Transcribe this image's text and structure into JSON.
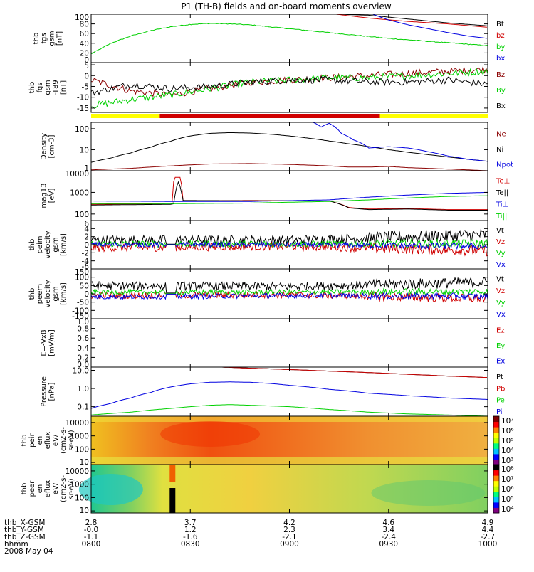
{
  "title": "P1 (TH-B) fields and on-board moments overview",
  "colors": {
    "black": "#000000",
    "red": "#d00000",
    "green": "#00d000",
    "blue": "#0000e0",
    "darkred": "#8b0000",
    "yellow": "#ffff00"
  },
  "chart_data": [
    {
      "type": "line",
      "id": "p1",
      "ylabel": [
        "thb",
        "fgs",
        "gsm",
        "[nT]"
      ],
      "ylim": [
        0,
        100
      ],
      "yticks": [
        "0",
        "20",
        "40",
        "60",
        "80",
        "100"
      ],
      "legend": [
        {
          "label": "Bt",
          "color": "black"
        },
        {
          "label": "bz",
          "color": "red"
        },
        {
          "label": "by",
          "color": "green"
        },
        {
          "label": "bx",
          "color": "blue"
        }
      ],
      "series": [
        {
          "name": "Bt",
          "color": "black",
          "x": [
            0.618,
            0.7,
            0.8,
            0.9,
            1.0
          ],
          "y": [
            100,
            98,
            90,
            82,
            76
          ]
        },
        {
          "name": "bz",
          "color": "red",
          "x": [
            0.618,
            0.7,
            0.8,
            0.9,
            1.0
          ],
          "y": [
            100,
            92,
            85,
            80,
            73
          ]
        },
        {
          "name": "by",
          "color": "green",
          "x": [
            0,
            0.05,
            0.1,
            0.15,
            0.2,
            0.25,
            0.3,
            0.35,
            0.4,
            0.45,
            0.5,
            0.55,
            0.6,
            0.65,
            0.7,
            0.75,
            0.8,
            0.85,
            0.9,
            0.95,
            1.0
          ],
          "y": [
            18,
            40,
            55,
            66,
            74,
            79,
            81,
            80,
            78,
            74,
            70,
            66,
            62,
            58,
            54,
            50,
            47,
            44,
            41,
            38,
            35
          ]
        },
        {
          "name": "bx",
          "color": "blue",
          "x": [
            0.71,
            0.75,
            0.8,
            0.85,
            0.9,
            0.95,
            1.0
          ],
          "y": [
            100,
            88,
            78,
            70,
            62,
            55,
            50
          ]
        }
      ]
    },
    {
      "type": "line",
      "id": "p2",
      "ylabel": [
        "thb",
        "fgs",
        "gsm",
        "-T89"
      ],
      "ylabel_unit": "[nT]",
      "ylim": [
        -17,
        6
      ],
      "yticks": [
        "-15",
        "-10",
        "-5",
        "0",
        "5"
      ],
      "legend": [
        {
          "label": "Bz",
          "color": "darkred"
        },
        {
          "label": "By",
          "color": "green"
        },
        {
          "label": "Bx",
          "color": "black"
        }
      ],
      "series": [
        {
          "name": "Bz",
          "color": "darkred",
          "x": [
            0,
            0.1,
            0.2,
            0.3,
            0.4,
            0.5,
            0.6,
            0.7,
            0.8,
            0.9,
            1.0
          ],
          "y": [
            -2,
            -7,
            -9,
            -6,
            -3,
            -2,
            -1,
            0,
            1,
            2,
            3
          ]
        },
        {
          "name": "By",
          "color": "green",
          "x": [
            0,
            0.1,
            0.2,
            0.3,
            0.4,
            0.5,
            0.6,
            0.7,
            0.8,
            0.9,
            1.0
          ],
          "y": [
            -14,
            -11,
            -9,
            -6,
            -3,
            -2,
            -1,
            -1,
            0,
            1,
            2
          ]
        },
        {
          "name": "Bx",
          "color": "black",
          "x": [
            0,
            0.1,
            0.2,
            0.3,
            0.4,
            0.5,
            0.6,
            0.7,
            0.8,
            0.9,
            1.0
          ],
          "y": [
            -8,
            -4,
            -6,
            -5,
            -3,
            -2,
            -2,
            -3,
            -3,
            -2,
            -4
          ]
        }
      ]
    },
    {
      "type": "bar",
      "id": "mode_bar",
      "segments": [
        {
          "from": 0,
          "to": 0.173,
          "color": "yellow"
        },
        {
          "from": 0.173,
          "to": 0.728,
          "color": "red"
        },
        {
          "from": 0.728,
          "to": 1.0,
          "color": "yellow"
        }
      ]
    },
    {
      "type": "line",
      "id": "p3",
      "ylabel": [
        "Density",
        "[cm-3]"
      ],
      "scale": "log",
      "ylim": [
        1,
        200
      ],
      "yticks": [
        "1",
        "10",
        "100"
      ],
      "ytick_values": [
        1,
        10,
        100
      ],
      "legend": [
        {
          "label": "Ne",
          "color": "darkred"
        },
        {
          "label": "Ni",
          "color": "black"
        },
        {
          "label": "Npot",
          "color": "blue"
        }
      ],
      "series": [
        {
          "name": "Ni",
          "color": "black",
          "x": [
            0,
            0.05,
            0.1,
            0.15,
            0.2,
            0.25,
            0.3,
            0.35,
            0.4,
            0.45,
            0.5,
            0.55,
            0.6,
            0.65,
            0.7,
            0.75,
            0.8,
            0.85,
            0.9,
            0.95,
            1.0
          ],
          "y": [
            2.5,
            4,
            7,
            13,
            25,
            45,
            60,
            65,
            62,
            55,
            45,
            35,
            26,
            19,
            14,
            10,
            7.5,
            5.8,
            4.5,
            3.5,
            2.8
          ]
        },
        {
          "name": "Ne",
          "color": "darkred",
          "x": [
            0,
            0.1,
            0.2,
            0.3,
            0.4,
            0.5,
            0.6,
            0.65,
            0.7,
            0.75,
            0.8,
            0.85,
            0.9,
            0.95,
            1.0
          ],
          "y": [
            1.1,
            1.3,
            1.7,
            2.1,
            2.2,
            2.0,
            1.7,
            1.5,
            1.5,
            1.6,
            1.4,
            1.3,
            1.2,
            1.1,
            1.0
          ]
        },
        {
          "name": "Npot",
          "color": "blue",
          "x": [
            0.56,
            0.58,
            0.6,
            0.63,
            0.66,
            0.7,
            0.75,
            0.8,
            0.85,
            0.9,
            0.95,
            1.0
          ],
          "y": [
            200,
            120,
            180,
            60,
            30,
            12,
            14,
            12,
            8,
            5,
            3.5,
            2.8
          ]
        }
      ]
    },
    {
      "type": "line",
      "id": "p4",
      "ylabel": [
        "mag13",
        "[eV]"
      ],
      "scale": "log",
      "ylim": [
        50,
        10000
      ],
      "yticks": [
        "100",
        "1000",
        "10000"
      ],
      "ytick_values": [
        100,
        1000,
        10000
      ],
      "legend": [
        {
          "label": "Te⊥",
          "color": "red"
        },
        {
          "label": "Te||",
          "color": "black"
        },
        {
          "label": "Ti⊥",
          "color": "blue"
        },
        {
          "label": "Ti||",
          "color": "green"
        }
      ],
      "series": [
        {
          "name": "Te⊥",
          "color": "red",
          "x": [
            0,
            0.18,
            0.205,
            0.21,
            0.225,
            0.23,
            0.4,
            0.6,
            0.65,
            0.7,
            0.8,
            0.9,
            1.0
          ],
          "y": [
            280,
            300,
            320,
            5000,
            5000,
            400,
            420,
            400,
            200,
            170,
            180,
            160,
            160
          ]
        },
        {
          "name": "Te||",
          "color": "black",
          "x": [
            0,
            0.2,
            0.21,
            0.22,
            0.23,
            0.4,
            0.6,
            0.65,
            0.7,
            0.8,
            0.9,
            1.0
          ],
          "y": [
            260,
            280,
            300,
            3000,
            420,
            410,
            400,
            190,
            160,
            170,
            150,
            150
          ]
        },
        {
          "name": "Ti⊥",
          "color": "blue",
          "x": [
            0,
            0.2,
            0.4,
            0.6,
            0.7,
            0.8,
            0.9,
            1.0
          ],
          "y": [
            400,
            380,
            380,
            450,
            600,
            750,
            900,
            1000
          ]
        },
        {
          "name": "Ti||",
          "color": "green",
          "x": [
            0,
            0.2,
            0.4,
            0.6,
            0.7,
            0.8,
            0.9,
            1.0
          ],
          "y": [
            300,
            300,
            320,
            380,
            450,
            550,
            650,
            700
          ]
        }
      ]
    },
    {
      "type": "line",
      "id": "p5",
      "ylabel": [
        "thb",
        "peim",
        "velocity",
        "gsm",
        "[km/s]"
      ],
      "ylim": [
        -6,
        6
      ],
      "yticks": [
        "-6",
        "-4",
        "-2",
        "0",
        "2",
        "4",
        "6"
      ],
      "legend": [
        {
          "label": "Vt",
          "color": "black"
        },
        {
          "label": "Vz",
          "color": "red"
        },
        {
          "label": "Vy",
          "color": "green"
        },
        {
          "label": "Vx",
          "color": "blue"
        }
      ],
      "series": [
        {
          "name": "Vt",
          "color": "black",
          "noise": 1.2,
          "x": [
            0,
            0.5,
            1.0
          ],
          "y": [
            1.2,
            1.1,
            2.5
          ]
        },
        {
          "name": "Vz",
          "color": "red",
          "noise": 1.0,
          "x": [
            0,
            0.5,
            1.0
          ],
          "y": [
            -0.8,
            -0.4,
            -1.5
          ]
        },
        {
          "name": "Vy",
          "color": "green",
          "noise": 0.8,
          "x": [
            0,
            0.5,
            1.0
          ],
          "y": [
            0.2,
            0.2,
            0.3
          ]
        },
        {
          "name": "Vx",
          "color": "blue",
          "noise": 0.6,
          "x": [
            0,
            0.5,
            1.0
          ],
          "y": [
            0,
            0,
            -0.4
          ]
        }
      ]
    },
    {
      "type": "line",
      "id": "p6",
      "ylabel": [
        "thb",
        "peem",
        "velocity",
        "gsm",
        "[km/s]"
      ],
      "ylim": [
        -150,
        150
      ],
      "yticks": [
        "-150",
        "-100",
        "-50",
        "0",
        "50",
        "100",
        "150"
      ],
      "legend": [
        {
          "label": "Vt",
          "color": "black"
        },
        {
          "label": "Vz",
          "color": "red"
        },
        {
          "label": "Vy",
          "color": "green"
        },
        {
          "label": "Vx",
          "color": "blue"
        }
      ],
      "series": [
        {
          "name": "Vt",
          "color": "black",
          "noise": 25,
          "x": [
            0,
            0.5,
            1.0
          ],
          "y": [
            50,
            45,
            70
          ]
        },
        {
          "name": "Vz",
          "color": "red",
          "noise": 20,
          "x": [
            0,
            0.5,
            1.0
          ],
          "y": [
            -10,
            -5,
            -30
          ]
        },
        {
          "name": "Vy",
          "color": "green",
          "noise": 15,
          "x": [
            0,
            0.5,
            1.0
          ],
          "y": [
            10,
            10,
            15
          ]
        },
        {
          "name": "Vx",
          "color": "blue",
          "noise": 15,
          "x": [
            0,
            0.5,
            1.0
          ],
          "y": [
            -20,
            -10,
            -15
          ]
        }
      ]
    },
    {
      "type": "line",
      "id": "p7",
      "ylabel": [
        "E=-VxB",
        "[mV/m]"
      ],
      "ylim": [
        0,
        1
      ],
      "yticks": [
        "0.0",
        "0.2",
        "0.4",
        "0.6",
        "0.8",
        "1.0"
      ],
      "legend": [
        {
          "label": "Ez",
          "color": "red"
        },
        {
          "label": "Ey",
          "color": "green"
        },
        {
          "label": "Ex",
          "color": "blue"
        }
      ],
      "series": []
    },
    {
      "type": "line",
      "id": "p8",
      "ylabel": [
        "Pressure",
        "[nPa]"
      ],
      "scale": "log",
      "ylim": [
        0.03,
        15
      ],
      "yticks": [
        "0.1",
        "1.0",
        "10.0"
      ],
      "ytick_values": [
        0.1,
        1,
        10
      ],
      "legend": [
        {
          "label": "Pt",
          "color": "black"
        },
        {
          "label": "Pb",
          "color": "red"
        },
        {
          "label": "Pe",
          "color": "green"
        },
        {
          "label": "Pi",
          "color": "blue"
        }
      ],
      "series": [
        {
          "name": "Pt",
          "color": "black",
          "x": [
            0.33,
            0.4,
            0.5,
            0.6,
            0.7,
            0.8,
            0.9,
            1.0
          ],
          "y": [
            15,
            13,
            11,
            9,
            7.5,
            6,
            4.8,
            4
          ]
        },
        {
          "name": "Pb",
          "color": "red",
          "x": [
            0.33,
            0.4,
            0.5,
            0.6,
            0.7,
            0.8,
            0.9,
            1.0
          ],
          "y": [
            15,
            13,
            11,
            9,
            7.5,
            6,
            4.8,
            4
          ]
        },
        {
          "name": "Pi",
          "color": "blue",
          "x": [
            0,
            0.05,
            0.1,
            0.15,
            0.2,
            0.25,
            0.3,
            0.35,
            0.4,
            0.45,
            0.5,
            0.6,
            0.7,
            0.8,
            0.9,
            1.0
          ],
          "y": [
            0.08,
            0.15,
            0.3,
            0.6,
            1.2,
            1.8,
            2.2,
            2.3,
            2.2,
            1.9,
            1.5,
            0.9,
            0.55,
            0.4,
            0.3,
            0.25
          ]
        },
        {
          "name": "Pe",
          "color": "green",
          "x": [
            0,
            0.1,
            0.2,
            0.3,
            0.35,
            0.4,
            0.5,
            0.6,
            0.7,
            0.8,
            0.9,
            1.0
          ],
          "y": [
            0.035,
            0.05,
            0.08,
            0.12,
            0.13,
            0.12,
            0.1,
            0.07,
            0.05,
            0.04,
            0.035,
            0.03
          ]
        }
      ]
    },
    {
      "type": "heatmap",
      "id": "p9",
      "ylabel": [
        "thb",
        "peir",
        "en",
        "eflux",
        "eV/",
        "(cm2-s-",
        "sr-eV)"
      ],
      "scale": "log",
      "ylim": [
        7,
        30000
      ],
      "yticks": [
        "10",
        "100",
        "1000",
        "10000"
      ],
      "ytick_values": [
        10,
        100,
        1000,
        10000
      ],
      "colorbar": {
        "labels": [
          "10³",
          "10⁴",
          "10⁵",
          "10⁶",
          "10⁷"
        ]
      }
    },
    {
      "type": "heatmap",
      "id": "p10",
      "ylabel": [
        "thb",
        "peer",
        "en",
        "eflux",
        "eV/",
        "(cm2-s-",
        "sr-eV)"
      ],
      "scale": "log",
      "ylim": [
        7,
        30000
      ],
      "yticks": [
        "10",
        "100",
        "1000",
        "10000"
      ],
      "ytick_values": [
        10,
        100,
        1000,
        10000
      ],
      "colorbar": {
        "labels": [
          "10⁴",
          "10⁵",
          "10⁶",
          "10⁷",
          "10⁸"
        ]
      }
    }
  ],
  "ephemeris": {
    "labels": [
      "thb_X-GSM",
      "thb_Y-GSM",
      "thb_Z-GSM",
      "hhmm",
      "2008 May 04"
    ],
    "columns": [
      {
        "rows": [
          "2.8",
          "-0.0",
          "-1.1",
          "0800"
        ]
      },
      {
        "rows": [
          "3.7",
          "1.2",
          "-1.6",
          "0830"
        ]
      },
      {
        "rows": [
          "4.2",
          "2.3",
          "-2.1",
          "0900"
        ]
      },
      {
        "rows": [
          "4.6",
          "3.4",
          "-2.4",
          "0930"
        ]
      },
      {
        "rows": [
          "4.9",
          "4.4",
          "-2.7",
          "1000"
        ]
      }
    ]
  }
}
